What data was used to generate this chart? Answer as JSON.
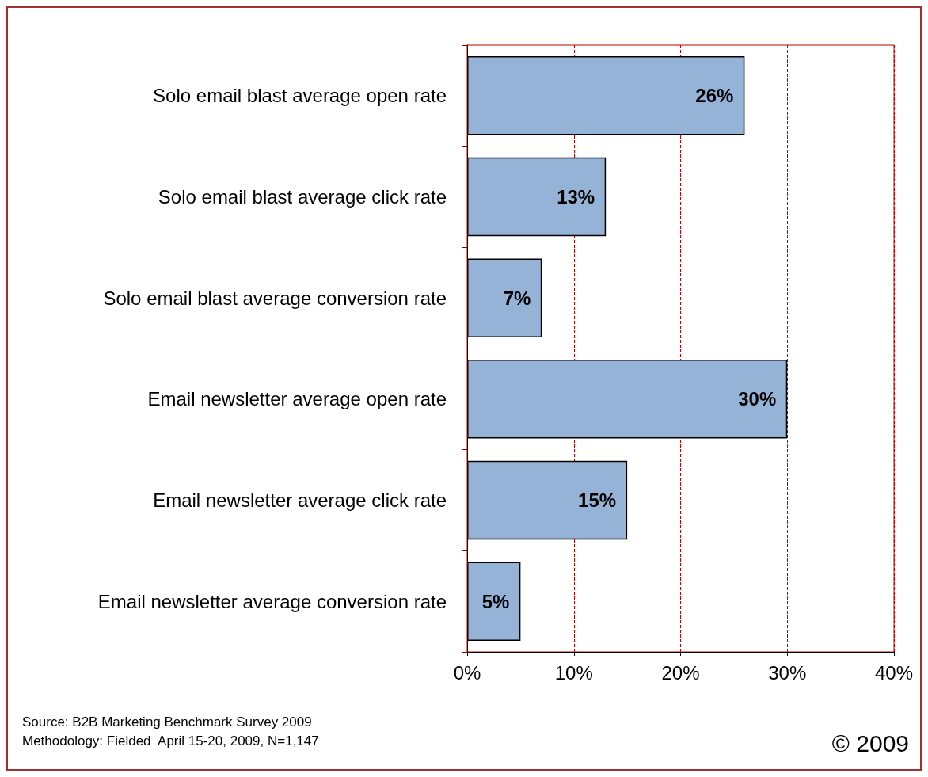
{
  "chart_data": {
    "type": "bar",
    "orientation": "horizontal",
    "categories": [
      "Solo email blast average open rate",
      "Solo email blast average click rate",
      "Solo email blast average conversion rate",
      "Email newsletter average open rate",
      "Email newsletter average click rate",
      "Email newsletter average conversion rate"
    ],
    "values": [
      26,
      13,
      7,
      30,
      15,
      5
    ],
    "value_labels": [
      "26%",
      "13%",
      "7%",
      "30%",
      "15%",
      "5%"
    ],
    "color": "#95b3d7",
    "xlim": [
      0,
      40
    ],
    "xticks": [
      {
        "value": 0,
        "label": "0%"
      },
      {
        "value": 10,
        "label": "10%"
      },
      {
        "value": 20,
        "label": "20%"
      },
      {
        "value": 30,
        "label": "30%"
      },
      {
        "value": 40,
        "label": "40%"
      }
    ],
    "grid": "x",
    "annotations": [
      "Source: B2B Marketing Benchmark Survey 2009",
      "Methodology: Fielded  April 15-20, 2009, N=1,147",
      "© 2009"
    ]
  }
}
